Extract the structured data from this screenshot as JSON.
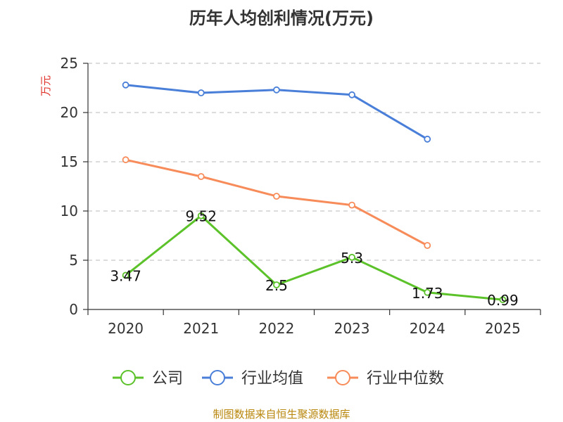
{
  "chart_data": {
    "type": "line",
    "title": "历年人均创利情况(万元)",
    "ylabel": "万元",
    "xlabel": "",
    "categories": [
      "2020",
      "2021",
      "2022",
      "2023",
      "2024",
      "2025"
    ],
    "ylim": [
      0,
      25
    ],
    "yticks": [
      0,
      5,
      10,
      15,
      20,
      25
    ],
    "grid": true,
    "legend_position": "bottom",
    "series": [
      {
        "name": "公司",
        "color": "#5cc22a",
        "values": [
          3.47,
          9.52,
          2.5,
          5.3,
          1.73,
          0.99
        ],
        "labels": [
          "3.47",
          "9.52",
          "2.5",
          "5.3",
          "1.73",
          "0.99"
        ]
      },
      {
        "name": "行业均值",
        "color": "#4a7fd9",
        "values": [
          22.8,
          22.0,
          22.3,
          21.8,
          17.3,
          null
        ]
      },
      {
        "name": "行业中位数",
        "color": "#f78c5a",
        "values": [
          15.2,
          13.5,
          11.5,
          10.6,
          6.5,
          null
        ]
      }
    ]
  },
  "footer": {
    "source": "制图数据来自恒生聚源数据库"
  }
}
